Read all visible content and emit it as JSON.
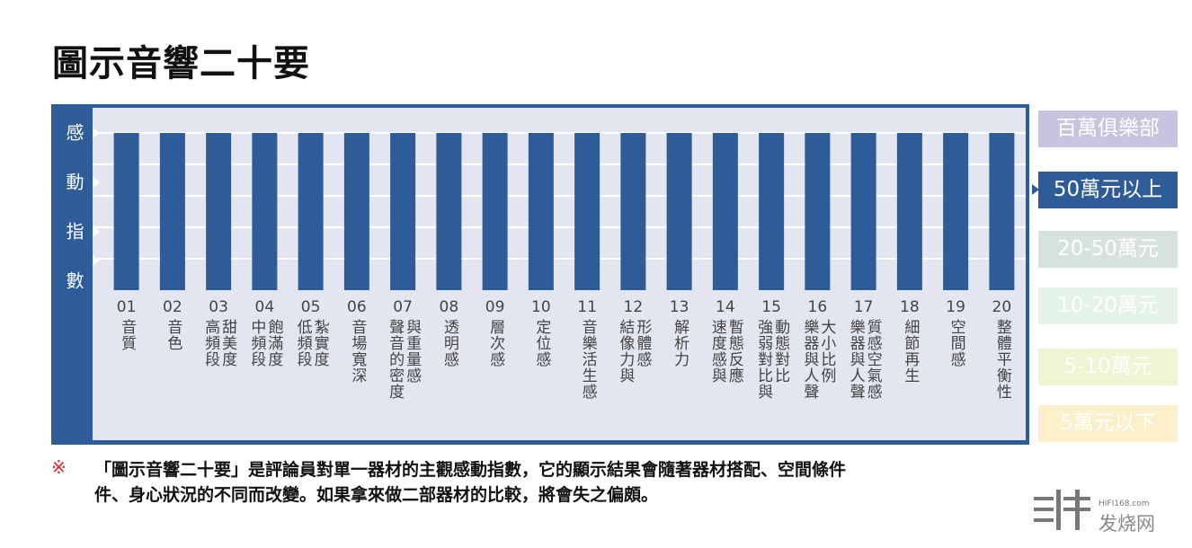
{
  "chart_data": {
    "type": "bar",
    "title": "圖示音響二十要",
    "y_label": "感動指數",
    "categories": [
      {
        "number": "01",
        "lines": [
          "音質"
        ]
      },
      {
        "number": "02",
        "lines": [
          "音色"
        ]
      },
      {
        "number": "03",
        "lines": [
          "高頻段",
          "甜美度"
        ]
      },
      {
        "number": "04",
        "lines": [
          "中頻段",
          "飽滿度"
        ]
      },
      {
        "number": "05",
        "lines": [
          "低頻段",
          "紮實度"
        ]
      },
      {
        "number": "06",
        "lines": [
          "音場寬深"
        ]
      },
      {
        "number": "07",
        "lines": [
          "聲音的密度",
          "與重量感"
        ]
      },
      {
        "number": "08",
        "lines": [
          "透明感"
        ]
      },
      {
        "number": "09",
        "lines": [
          "層次感"
        ]
      },
      {
        "number": "10",
        "lines": [
          "定位感"
        ]
      },
      {
        "number": "11",
        "lines": [
          "音樂活生感"
        ]
      },
      {
        "number": "12",
        "lines": [
          "結像力與",
          "形體感"
        ]
      },
      {
        "number": "13",
        "lines": [
          "解析力"
        ]
      },
      {
        "number": "14",
        "lines": [
          "速度感與",
          "暫態反應"
        ]
      },
      {
        "number": "15",
        "lines": [
          "強弱對比與",
          "動態對比"
        ]
      },
      {
        "number": "16",
        "lines": [
          "樂器與人聲",
          "大小比例"
        ]
      },
      {
        "number": "17",
        "lines": [
          "樂器與人聲",
          "質感空氣感"
        ]
      },
      {
        "number": "18",
        "lines": [
          "細節再生"
        ]
      },
      {
        "number": "19",
        "lines": [
          "空間感"
        ]
      },
      {
        "number": "20",
        "lines": [
          "整體平衡性"
        ]
      }
    ],
    "series": [
      {
        "color": "#2d5c98",
        "values": [
          5,
          5,
          5,
          5,
          5,
          5,
          5,
          5,
          5,
          5,
          5,
          5,
          5,
          5,
          5,
          5,
          5,
          5,
          5,
          5
        ]
      }
    ],
    "ylim": [
      0,
      5
    ],
    "yticks": [
      1,
      2,
      3,
      4,
      5
    ],
    "grid": true,
    "tiers": [
      {
        "label": "百萬俱樂部",
        "color": "#c8c3df"
      },
      {
        "label": "50萬元以上",
        "color": "#2d5c98"
      },
      {
        "label": "20-50萬元",
        "color": "#d5e3e0"
      },
      {
        "label": "10-20萬元",
        "color": "#e4f3e8"
      },
      {
        "label": "5-10萬元",
        "color": "#eef5d3"
      },
      {
        "label": "5萬元以下",
        "color": "#fbf0c9"
      }
    ],
    "active_tier": 1,
    "note_mark": "※",
    "note_lines": [
      "「圖示音響二十要」是評論員對單一器材的主觀感動指數，它的顯示結果會隨著器材搭配、空間條件",
      "件、身心狀況的不同而改變。如果拿來做二部器材的比較，將會失之偏頗。"
    ]
  },
  "watermark": {
    "site": "HIFI168.com",
    "name": "发烧网"
  }
}
